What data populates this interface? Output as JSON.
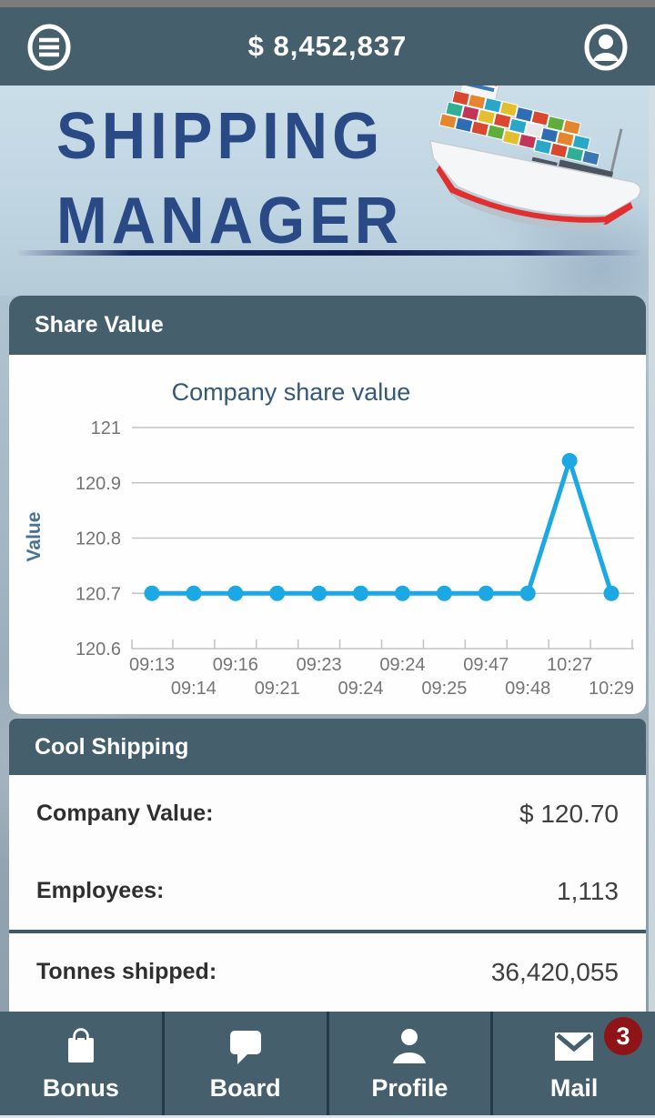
{
  "top_bar": {
    "balance": "$ 8,452,837",
    "menu_icon": "hamburger-icon",
    "profile_icon": "user-icon"
  },
  "banner": {
    "title_line1": "SHIPPING",
    "title_line2": "MANAGER",
    "illustration": "container-ship"
  },
  "share_section": {
    "header": "Share Value"
  },
  "chart_data": {
    "type": "line",
    "title": "Company share value",
    "xlabel": "",
    "ylabel": "Value",
    "x": [
      "09:13",
      "09:14",
      "09:16",
      "09:21",
      "09:23",
      "09:24",
      "09:24",
      "09:25",
      "09:47",
      "09:48",
      "10:27",
      "10:29"
    ],
    "series": [
      {
        "name": "Value",
        "values": [
          120.7,
          120.7,
          120.7,
          120.7,
          120.7,
          120.7,
          120.7,
          120.7,
          120.7,
          120.7,
          120.94,
          120.7
        ]
      }
    ],
    "ylim": [
      120.6,
      121
    ],
    "yticks": [
      120.6,
      120.7,
      120.8,
      120.9,
      121
    ],
    "ytick_labels": [
      "120.6",
      "120.7",
      "120.8",
      "120.9",
      "121"
    ],
    "grid": true,
    "legend": false,
    "line_color": "#1ca9e3",
    "title_color": "#34587a",
    "ylabel_color": "#4a7298",
    "tick_color": "#757575",
    "grid_color": "#c4c4c4"
  },
  "company_section": {
    "header": "Cool Shipping",
    "rows": [
      {
        "label": "Company Value:",
        "value": "$ 120.70"
      },
      {
        "label": "Employees:",
        "value": "1,113"
      },
      {
        "label": "Tonnes shipped:",
        "value": "36,420,055"
      }
    ]
  },
  "bottom_nav": {
    "items": [
      {
        "label": "Bonus",
        "icon": "shopping-bag-icon"
      },
      {
        "label": "Board",
        "icon": "speech-bubble-icon"
      },
      {
        "label": "Profile",
        "icon": "person-icon"
      },
      {
        "label": "Mail",
        "icon": "envelope-icon",
        "badge": "3"
      }
    ]
  },
  "colors": {
    "chrome": "#455f6d",
    "accent_line": "#1ca9e3",
    "badge_red": "#8e1418",
    "logo_navy": "#2a4a86"
  }
}
